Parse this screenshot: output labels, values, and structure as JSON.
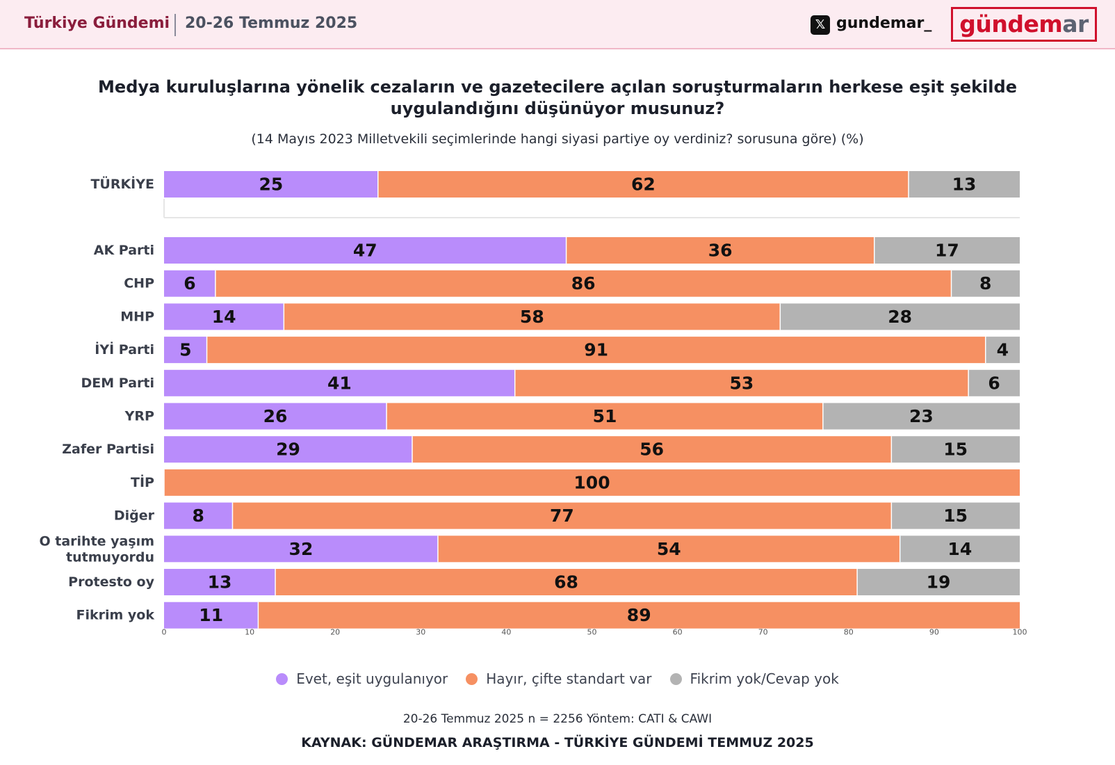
{
  "header": {
    "title": "Türkiye Gündemi",
    "date": "20-26 Temmuz 2025",
    "x_icon": "x-logo-icon",
    "x_glyph": "𝕏",
    "handle": "gundemar_",
    "logo_main": "gündem",
    "logo_tail": "ar"
  },
  "colors": {
    "evet": "#b98cfb",
    "hayir": "#f69062",
    "fikrim_yok": "#b3b3b3",
    "header_bg": "#fcecf1",
    "brand_red": "#d0102c"
  },
  "chart_data": {
    "type": "bar",
    "orientation": "horizontal",
    "stacked": true,
    "title": "Medya kuruluşlarına yönelik cezaların ve gazetecilere açılan soruşturmaların herkese eşit şekilde uygulandığını düşünüyor musunuz?",
    "subtitle": "(14 Mayıs 2023 Milletvekili seçimlerinde hangi siyasi partiye oy verdiniz? sorusuna göre) (%)",
    "xlim": [
      0,
      100
    ],
    "xticks": [
      "0",
      "10",
      "20",
      "30",
      "40",
      "50",
      "60",
      "70",
      "80",
      "90",
      "100"
    ],
    "categories": [
      "TÜRKİYE",
      "AK Parti",
      "CHP",
      "MHP",
      "İYİ Parti",
      "DEM Parti",
      "YRP",
      "Zafer Partisi",
      "TİP",
      "Diğer",
      "O tarihte yaşım tutmuyordu",
      "Protesto oy",
      "Fikrim yok"
    ],
    "series": [
      {
        "name": "Evet, eşit uygulanıyor",
        "values": [
          25,
          47,
          6,
          14,
          5,
          41,
          26,
          29,
          0,
          8,
          32,
          13,
          11
        ]
      },
      {
        "name": "Hayır, çifte standart var",
        "values": [
          62,
          36,
          86,
          58,
          91,
          53,
          51,
          56,
          100,
          77,
          54,
          68,
          89
        ]
      },
      {
        "name": "Fikrim yok/Cevap yok",
        "values": [
          13,
          17,
          8,
          28,
          4,
          6,
          23,
          15,
          0,
          15,
          14,
          19,
          0
        ]
      }
    ]
  },
  "footer": {
    "method": "20-26 Temmuz 2025 n = 2256 Yöntem: CATI & CAWI",
    "source": "KAYNAK: GÜNDEMAR ARAŞTIRMA - TÜRKİYE GÜNDEMİ TEMMUZ 2025"
  }
}
